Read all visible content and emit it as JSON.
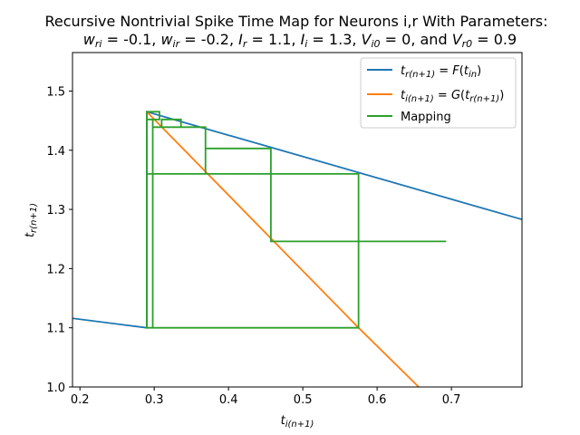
{
  "chart_data": {
    "type": "line",
    "title_line1": "Recursive Nontrivial Spike Time Map for Neurons i,r With Parameters:",
    "title_line2": "w_ri = -0.1, w_ir = -0.2, I_r = 1.1, I_i = 1.3, V_i0 = 0, and V_r0 = 0.9",
    "xlabel": "t_i(n+1)",
    "ylabel": "t_r(n+1)",
    "xlim": [
      0.19,
      0.795
    ],
    "ylim": [
      1.0,
      1.565
    ],
    "xticks": [
      "0.2",
      "0.3",
      "0.4",
      "0.5",
      "0.6",
      "0.7"
    ],
    "xtick_values": [
      0.2,
      0.3,
      0.4,
      0.5,
      0.6,
      0.7
    ],
    "yticks": [
      "1.0",
      "1.1",
      "1.2",
      "1.3",
      "1.4",
      "1.5"
    ],
    "ytick_values": [
      1.0,
      1.1,
      1.2,
      1.3,
      1.4,
      1.5
    ],
    "legend_position": "top-right",
    "grid": false,
    "series": [
      {
        "name": "t_r(n+1) = F(t_in)",
        "color": "#1f77b4",
        "x": [
          0.19,
          0.29,
          0.29,
          0.795
        ],
        "y": [
          1.116,
          1.1,
          1.465,
          1.283
        ]
      },
      {
        "name": "t_i(n+1) = G(t_r(n+1))",
        "color": "#ff7f0e",
        "x": [
          0.29,
          0.575,
          0.656
        ],
        "y": [
          1.465,
          1.1,
          1.0
        ]
      },
      {
        "name": "Mapping",
        "color": "#2ca02c",
        "x": [
          0.693,
          0.457,
          0.457,
          0.369,
          0.369,
          0.336,
          0.336,
          0.31,
          0.31,
          0.298,
          0.298,
          0.29,
          0.29,
          0.575,
          0.575,
          0.369,
          0.369,
          0.298,
          0.298,
          0.575,
          0.575,
          0.29,
          0.29,
          0.307,
          0.307,
          0.29
        ],
        "y": [
          1.246,
          1.246,
          1.403,
          1.403,
          1.439,
          1.439,
          1.452,
          1.452,
          1.439,
          1.439,
          1.452,
          1.452,
          1.1,
          1.1,
          1.36,
          1.36,
          1.439,
          1.439,
          1.1,
          1.1,
          1.36,
          1.36,
          1.465,
          1.465,
          1.452,
          1.452
        ]
      }
    ]
  }
}
